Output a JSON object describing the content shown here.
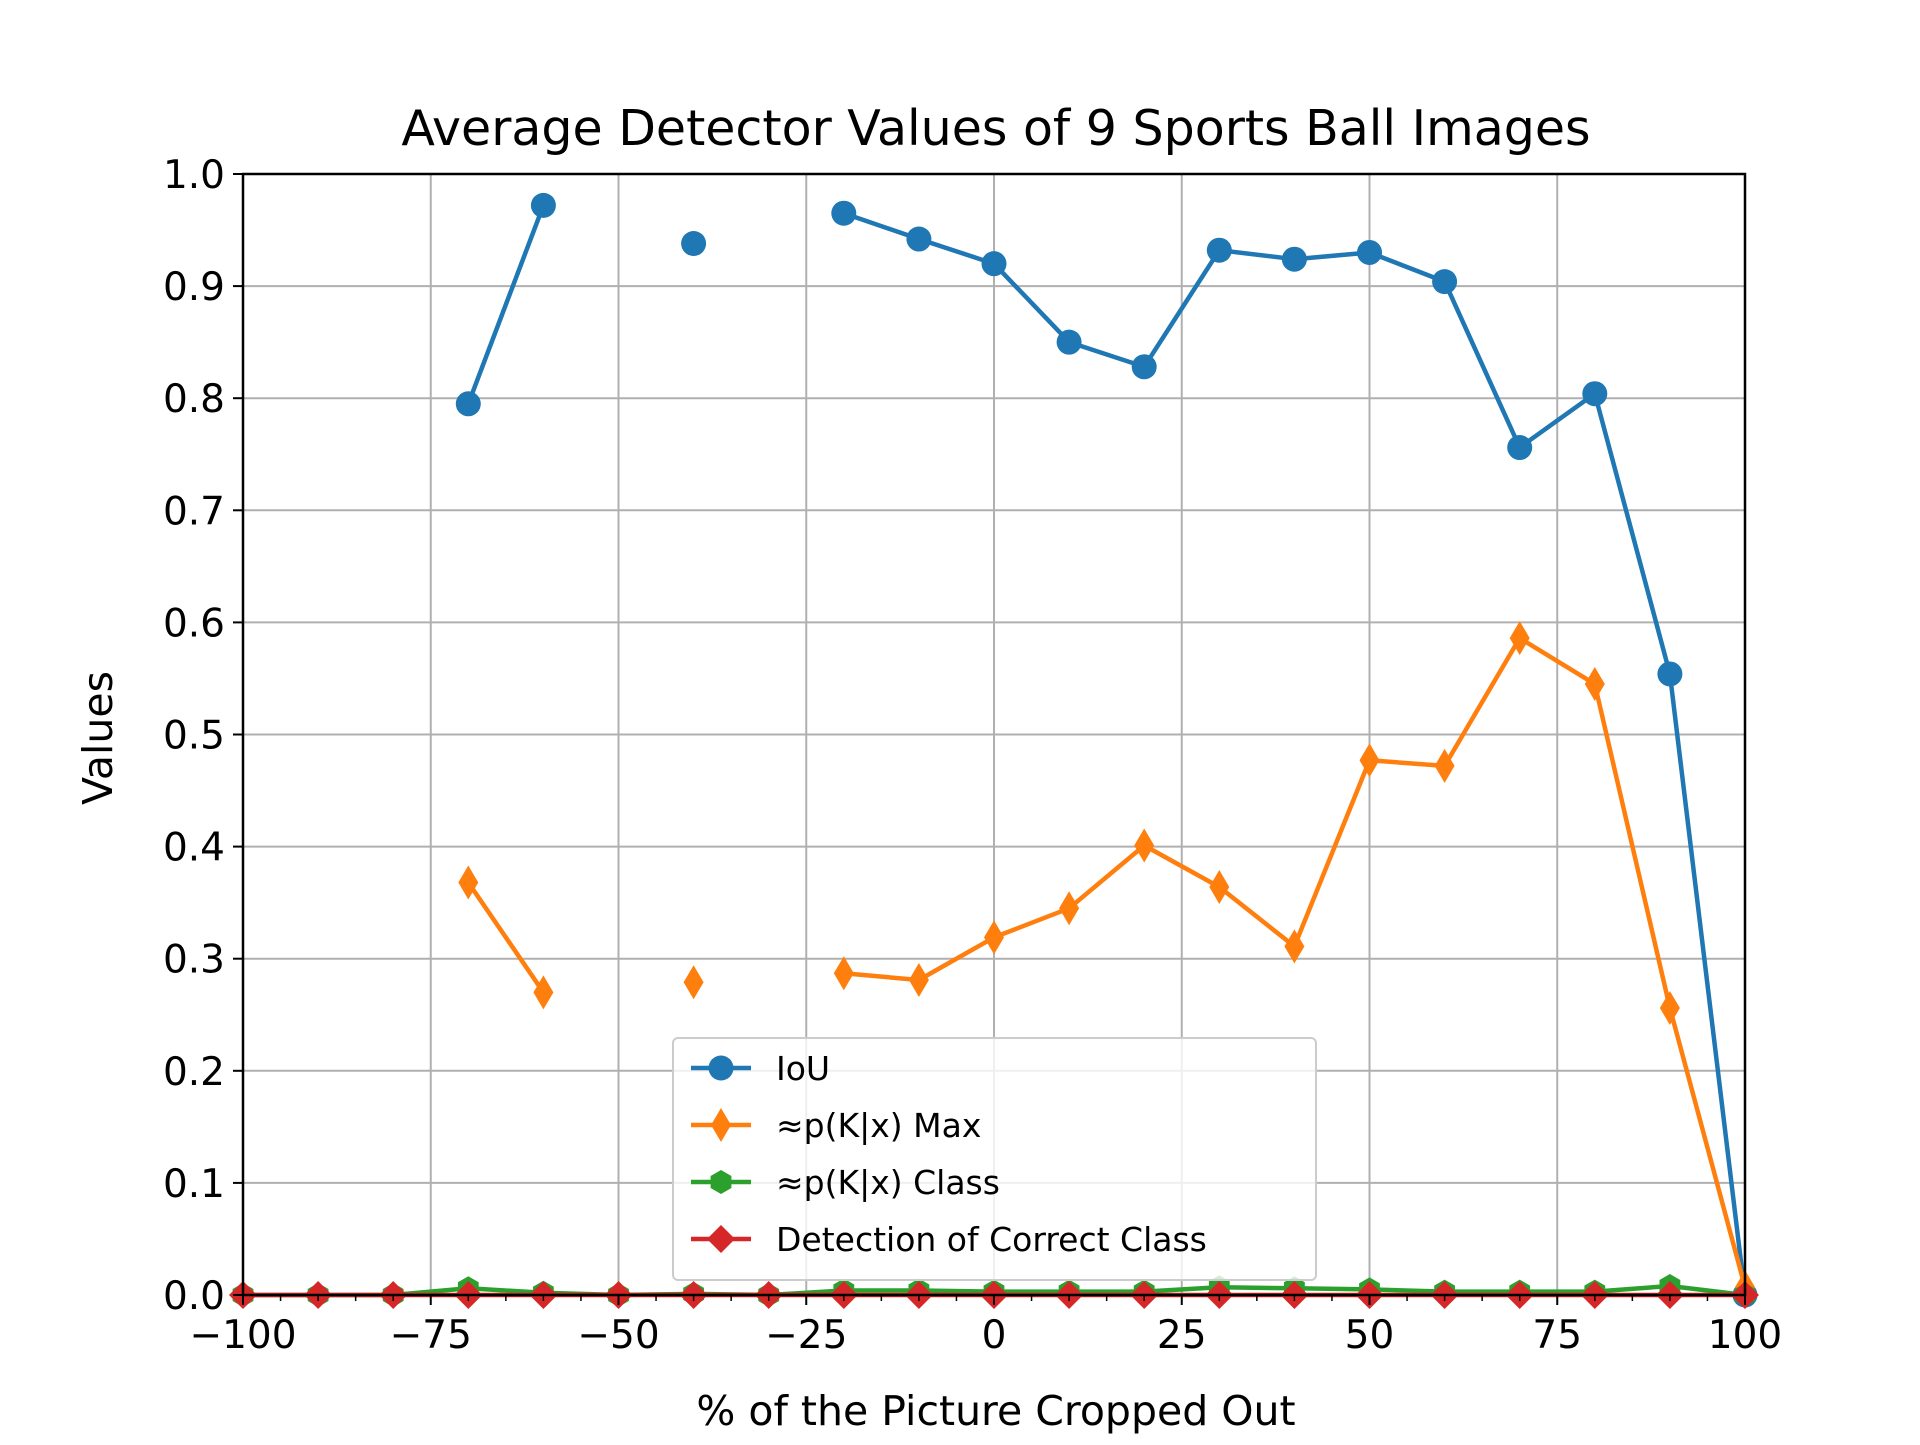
{
  "chart_data": {
    "type": "line",
    "title": "Average Detector Values of 9 Sports Ball Images",
    "xlabel": "% of the Picture Cropped Out",
    "ylabel": "Values",
    "xlim": [
      -100,
      100
    ],
    "ylim": [
      0.0,
      1.0
    ],
    "x_ticks": [
      -100,
      -75,
      -50,
      -25,
      0,
      25,
      50,
      75,
      100
    ],
    "x_tick_labels": [
      "−100",
      "−75",
      "−50",
      "−25",
      "0",
      "25",
      "50",
      "75",
      "100"
    ],
    "y_ticks": [
      0.0,
      0.1,
      0.2,
      0.3,
      0.4,
      0.5,
      0.6,
      0.7,
      0.8,
      0.9,
      1.0
    ],
    "y_tick_labels": [
      "0.0",
      "0.1",
      "0.2",
      "0.3",
      "0.4",
      "0.5",
      "0.6",
      "0.7",
      "0.8",
      "0.9",
      "1.0"
    ],
    "grid": true,
    "legend_position": "lower-center",
    "x": [
      -100,
      -90,
      -80,
      -70,
      -60,
      -50,
      -40,
      -30,
      -20,
      -10,
      0,
      10,
      20,
      30,
      40,
      50,
      60,
      70,
      80,
      90,
      100
    ],
    "series": [
      {
        "name": "IoU",
        "color": "#1f77b4",
        "marker": "circle",
        "values": [
          null,
          null,
          null,
          0.795,
          0.972,
          null,
          0.938,
          null,
          0.965,
          0.942,
          0.92,
          0.85,
          0.828,
          0.932,
          0.924,
          0.93,
          0.904,
          0.756,
          0.804,
          0.554,
          0.0
        ]
      },
      {
        "name": "≈p(K|x) Max",
        "color": "#ff7f0e",
        "marker": "thin-diamond",
        "values": [
          null,
          null,
          null,
          0.368,
          0.27,
          null,
          0.279,
          null,
          0.287,
          0.281,
          0.319,
          0.345,
          0.401,
          0.364,
          0.311,
          0.477,
          0.472,
          0.586,
          0.545,
          0.256,
          0.007
        ]
      },
      {
        "name": "≈p(K|x) Class",
        "color": "#2ca02c",
        "marker": "hexagon",
        "values": [
          0.0,
          0.0,
          0.0,
          0.006,
          0.002,
          0.0,
          0.001,
          0.0,
          0.004,
          0.004,
          0.003,
          0.003,
          0.003,
          0.007,
          0.006,
          0.005,
          0.003,
          0.003,
          0.003,
          0.008,
          0.0
        ]
      },
      {
        "name": "Detection of Correct Class",
        "color": "#d62728",
        "marker": "diamond",
        "values": [
          0.0,
          0.0,
          0.0,
          0.0,
          0.0,
          0.0,
          0.0,
          0.0,
          0.0,
          0.0,
          0.0,
          0.0,
          0.0,
          0.0,
          0.0,
          0.0,
          0.0,
          0.0,
          0.0,
          0.0,
          0.0
        ]
      }
    ]
  }
}
